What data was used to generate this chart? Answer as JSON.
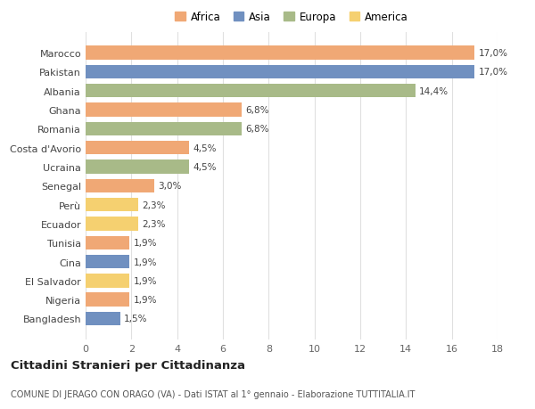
{
  "categories": [
    "Marocco",
    "Pakistan",
    "Albania",
    "Ghana",
    "Romania",
    "Costa d'Avorio",
    "Ucraina",
    "Senegal",
    "Perù",
    "Ecuador",
    "Tunisia",
    "Cina",
    "El Salvador",
    "Nigeria",
    "Bangladesh"
  ],
  "values": [
    17.0,
    17.0,
    14.4,
    6.8,
    6.8,
    4.5,
    4.5,
    3.0,
    2.3,
    2.3,
    1.9,
    1.9,
    1.9,
    1.9,
    1.5
  ],
  "labels": [
    "17,0%",
    "17,0%",
    "14,4%",
    "6,8%",
    "6,8%",
    "4,5%",
    "4,5%",
    "3,0%",
    "2,3%",
    "2,3%",
    "1,9%",
    "1,9%",
    "1,9%",
    "1,9%",
    "1,5%"
  ],
  "continents": [
    "Africa",
    "Asia",
    "Europa",
    "Africa",
    "Europa",
    "Africa",
    "Europa",
    "Africa",
    "America",
    "America",
    "Africa",
    "Asia",
    "America",
    "Africa",
    "Asia"
  ],
  "colors": {
    "Africa": "#F0A875",
    "Asia": "#7090C0",
    "Europa": "#A8BA88",
    "America": "#F5D070"
  },
  "legend_order": [
    "Africa",
    "Asia",
    "Europa",
    "America"
  ],
  "xlim": [
    0,
    18
  ],
  "xticks": [
    0,
    2,
    4,
    6,
    8,
    10,
    12,
    14,
    16,
    18
  ],
  "title": "Cittadini Stranieri per Cittadinanza",
  "subtitle": "COMUNE DI JERAGO CON ORAGO (VA) - Dati ISTAT al 1° gennaio - Elaborazione TUTTITALIA.IT",
  "bg_color": "#ffffff",
  "grid_color": "#e0e0e0"
}
